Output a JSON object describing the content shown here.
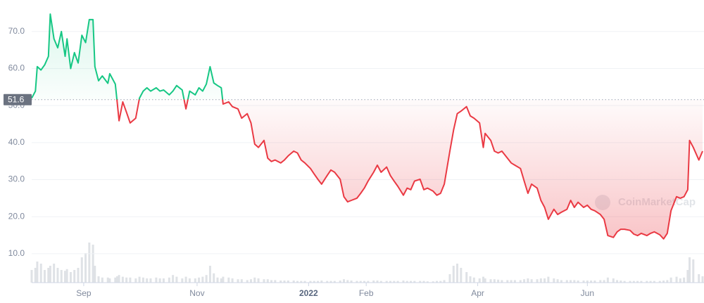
{
  "chart_data": {
    "type": "line",
    "watermark": "CoinMarketCap",
    "baseline": 51.6,
    "xlim": [
      0,
      361
    ],
    "xticks": [
      {
        "value": 28,
        "label": "Sep"
      },
      {
        "value": 89,
        "label": "Nov"
      },
      {
        "value": 149,
        "label": "2022"
      },
      {
        "value": 180,
        "label": "Feb"
      },
      {
        "value": 240,
        "label": "Apr"
      },
      {
        "value": 299,
        "label": "Jun"
      }
    ],
    "ylim": [
      2.2,
      78.5
    ],
    "yticks": [
      {
        "value": 10,
        "label": "10.0"
      },
      {
        "value": 20,
        "label": "20.0"
      },
      {
        "value": 30,
        "label": "30.0"
      },
      {
        "value": 40,
        "label": "40.0"
      },
      {
        "value": 50,
        "label": "50.0"
      },
      {
        "value": 60,
        "label": "60.0"
      },
      {
        "value": 70,
        "label": "70.0"
      }
    ],
    "y2lim": [
      0,
      100
    ],
    "grid": true,
    "x": [
      0,
      2,
      3,
      5,
      7,
      9,
      10,
      12,
      14,
      16,
      18,
      19,
      21,
      23,
      25,
      27,
      29,
      31,
      33,
      34,
      36,
      38,
      41,
      42,
      45,
      46,
      47,
      49,
      51,
      53,
      56,
      58,
      60,
      62,
      64,
      67,
      69,
      71,
      74,
      76,
      78,
      81,
      83,
      85,
      88,
      90,
      92,
      94,
      96,
      98,
      100,
      102,
      103,
      106,
      108,
      111,
      113,
      116,
      118,
      120,
      122,
      125,
      127,
      129,
      131,
      134,
      136,
      138,
      141,
      143,
      145,
      147,
      150,
      152,
      154,
      156,
      159,
      161,
      163,
      166,
      168,
      170,
      172,
      175,
      177,
      179,
      181,
      184,
      186,
      188,
      191,
      193,
      195,
      197,
      200,
      202,
      204,
      206,
      209,
      211,
      213,
      216,
      218,
      220,
      222,
      225,
      227,
      229,
      231,
      234,
      236,
      238,
      241,
      243,
      244,
      247,
      249,
      251,
      253,
      256,
      258,
      260,
      263,
      265,
      267,
      269,
      272,
      274,
      276,
      278,
      281,
      283,
      285,
      288,
      290,
      292,
      294,
      297,
      299,
      301,
      303,
      306,
      308,
      310,
      313,
      315,
      317,
      319,
      322,
      324,
      326,
      328,
      331,
      333,
      335,
      338,
      340,
      342,
      344,
      347,
      349,
      351,
      353,
      354,
      356,
      359,
      361
    ],
    "series": [
      {
        "up_color": "#16c784",
        "down_color": "#ea3943",
        "values": [
          52.0,
          53.9,
          60.5,
          59.6,
          61,
          63.3,
          74.7,
          68,
          65.6,
          70,
          63.3,
          68,
          60,
          64.3,
          61.5,
          69,
          67,
          73.2,
          73.2,
          60.5,
          56.7,
          58,
          56,
          58.6,
          55.8,
          51,
          45.9,
          51,
          48.2,
          45.3,
          46.6,
          52,
          53.9,
          54.8,
          53.9,
          54.8,
          53.9,
          54.2,
          52.9,
          53.9,
          55.4,
          54.2,
          49.1,
          53.9,
          52.9,
          54.8,
          53.9,
          55.8,
          60.5,
          56.1,
          55.4,
          54.8,
          50.4,
          51,
          49.7,
          49.1,
          46.6,
          47.8,
          45.3,
          39.6,
          38.7,
          40.6,
          35.8,
          34.9,
          35.3,
          34.5,
          35.3,
          36.4,
          37.7,
          37.2,
          35.3,
          34.5,
          33,
          31.5,
          30.1,
          28.8,
          31.1,
          32.6,
          32,
          30.1,
          25.4,
          24,
          24.4,
          25,
          26.3,
          27.7,
          29.6,
          32,
          33.9,
          32,
          33.4,
          31.1,
          29.6,
          28.2,
          25.8,
          27.7,
          27.3,
          29.6,
          30.1,
          27.3,
          27.7,
          26.9,
          25.8,
          26.3,
          28.8,
          37.7,
          43.4,
          47.8,
          48.5,
          49.7,
          47.2,
          46.6,
          45.3,
          38.7,
          42.5,
          40.6,
          37.7,
          37.2,
          37.7,
          35.8,
          34.5,
          33.9,
          33,
          29.6,
          26.3,
          28.8,
          27.7,
          24.4,
          22.5,
          19.3,
          22,
          20.6,
          21.2,
          22,
          24.4,
          22.5,
          23.9,
          22.5,
          23.1,
          22,
          21.6,
          20.6,
          19.3,
          14.9,
          14.4,
          15.9,
          16.6,
          16.6,
          16.3,
          15.3,
          14.9,
          15.5,
          14.9,
          15.5,
          15.9,
          15.1,
          14,
          15.5,
          21.6,
          25.4,
          25,
          25.4,
          27.3,
          40.6,
          38.7,
          35.3,
          37.7
        ]
      },
      {
        "axis": "y2",
        "color": "#dfe2e6",
        "values": [
          30,
          35,
          50,
          45,
          30,
          35,
          40,
          45,
          35,
          30,
          28,
          32,
          25,
          30,
          35,
          60,
          70,
          95,
          90,
          40,
          15,
          12,
          12,
          10,
          12,
          15,
          18,
          14,
          12,
          12,
          10,
          14,
          12,
          10,
          10,
          12,
          10,
          10,
          12,
          18,
          14,
          10,
          14,
          10,
          10,
          12,
          14,
          18,
          40,
          22,
          12,
          10,
          14,
          12,
          10,
          8,
          8,
          6,
          8,
          12,
          10,
          8,
          8,
          6,
          6,
          5,
          5,
          5,
          5,
          4,
          4,
          4,
          4,
          4,
          4,
          5,
          4,
          4,
          4,
          5,
          8,
          6,
          5,
          4,
          4,
          4,
          4,
          5,
          5,
          4,
          4,
          4,
          4,
          4,
          5,
          4,
          4,
          4,
          4,
          4,
          3,
          3,
          4,
          4,
          6,
          20,
          40,
          45,
          35,
          25,
          15,
          12,
          10,
          14,
          10,
          8,
          8,
          7,
          6,
          6,
          6,
          6,
          6,
          8,
          10,
          8,
          8,
          10,
          10,
          14,
          10,
          8,
          6,
          6,
          6,
          6,
          5,
          5,
          5,
          5,
          5,
          6,
          6,
          12,
          10,
          6,
          5,
          4,
          4,
          4,
          4,
          4,
          4,
          4,
          4,
          4,
          5,
          6,
          12,
          14,
          10,
          12,
          30,
          60,
          55,
          20,
          15
        ]
      }
    ]
  }
}
